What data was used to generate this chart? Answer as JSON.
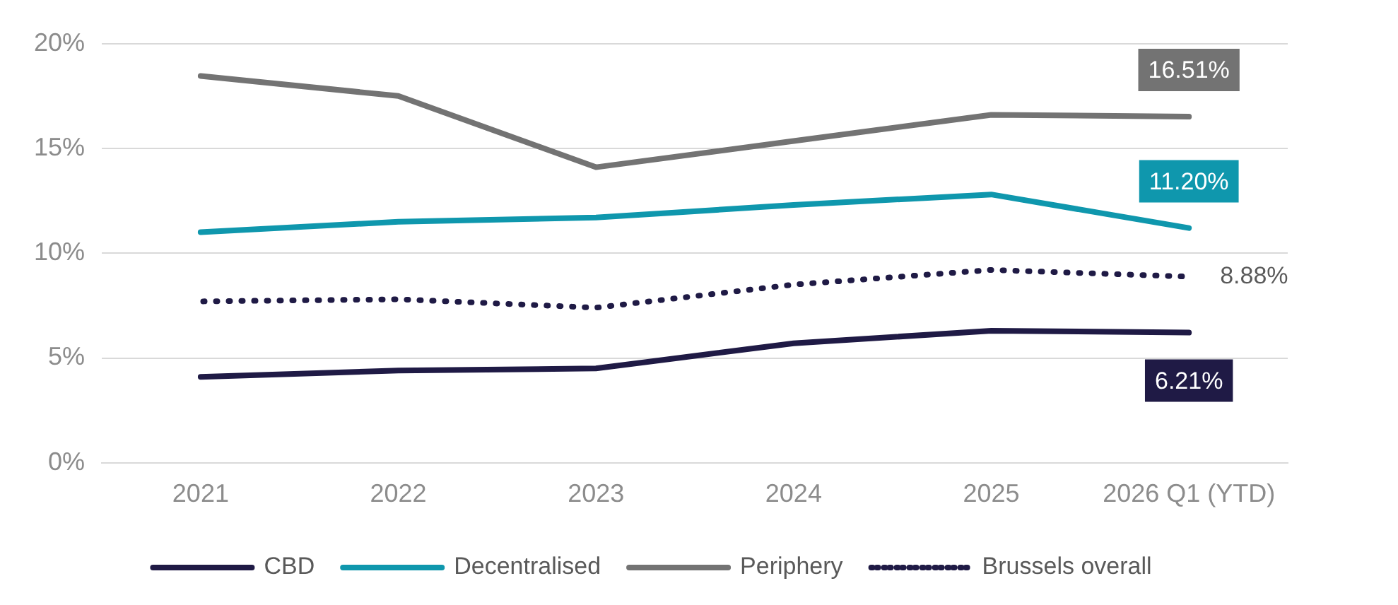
{
  "chart_data": {
    "type": "line",
    "categories": [
      "2021",
      "2022",
      "2023",
      "2024",
      "2025",
      "2026 Q1 (YTD)"
    ],
    "ylim": [
      0,
      20
    ],
    "yticks": [
      {
        "value": 0,
        "label": "0%"
      },
      {
        "value": 5,
        "label": "5%"
      },
      {
        "value": 10,
        "label": "10%"
      },
      {
        "value": 15,
        "label": "15%"
      },
      {
        "value": 20,
        "label": "20%"
      }
    ],
    "grid": "y",
    "legend": "bottom",
    "marker": "none",
    "series": [
      {
        "name": "CBD",
        "color": "#1f1a45",
        "values": [
          4.1,
          4.4,
          4.5,
          5.7,
          6.3,
          6.21
        ],
        "value_labels": [
          null,
          null,
          null,
          null,
          null,
          "6.21%"
        ]
      },
      {
        "name": "Decentralised",
        "color": "#0f97ad",
        "values": [
          11.0,
          11.5,
          11.7,
          12.3,
          12.8,
          11.2
        ],
        "value_labels": [
          null,
          null,
          null,
          null,
          null,
          "11.20%"
        ]
      },
      {
        "name": "Periphery",
        "color": "#737373",
        "values": [
          18.45,
          17.5,
          14.1,
          15.35,
          16.6,
          16.51
        ],
        "value_labels": [
          null,
          null,
          null,
          null,
          null,
          "16.51%"
        ]
      },
      {
        "name": "Brussels overall",
        "color": "#1f1a45",
        "line_style": "dotted",
        "values": [
          7.7,
          7.8,
          7.4,
          8.5,
          9.2,
          8.88
        ],
        "value_labels": [
          null,
          null,
          null,
          null,
          null,
          "8.88%"
        ]
      }
    ]
  }
}
